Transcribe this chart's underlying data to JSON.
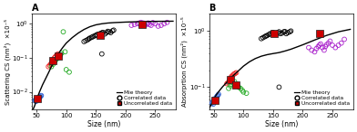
{
  "panel_A": {
    "title": "A",
    "ylabel": "Scattering CS (nm²)  ×10⁻⁵",
    "xlabel": "Size (nm)",
    "xlim": [
      42,
      285
    ],
    "ylim": [
      0.003,
      2.0
    ],
    "mie_x": [
      42,
      47,
      50,
      55,
      60,
      65,
      70,
      75,
      80,
      85,
      90,
      95,
      100,
      110,
      120,
      130,
      140,
      150,
      160,
      170,
      180,
      200,
      220,
      240,
      260,
      280
    ],
    "mie_y": [
      0.0025,
      0.004,
      0.006,
      0.01,
      0.016,
      0.024,
      0.036,
      0.055,
      0.08,
      0.115,
      0.16,
      0.21,
      0.27,
      0.39,
      0.53,
      0.68,
      0.82,
      0.93,
      1.0,
      1.05,
      1.08,
      1.12,
      1.15,
      1.17,
      1.18,
      1.19
    ],
    "blue_circles": {
      "x": [
        47,
        48,
        49,
        50,
        51,
        52,
        53,
        54,
        55,
        56,
        57,
        58
      ],
      "y": [
        0.0055,
        0.0058,
        0.0052,
        0.006,
        0.0065,
        0.0062,
        0.006,
        0.0068,
        0.007,
        0.0072,
        0.0075,
        0.0078
      ]
    },
    "red_circles": {
      "x": [
        70,
        72,
        74,
        75,
        76,
        77,
        78,
        80,
        82,
        84,
        86
      ],
      "y": [
        0.055,
        0.06,
        0.065,
        0.07,
        0.075,
        0.08,
        0.09,
        0.1,
        0.11,
        0.12,
        0.13
      ]
    },
    "green_circles": {
      "x": [
        75,
        78,
        80,
        82,
        85,
        88,
        90,
        92,
        95,
        98,
        100,
        105
      ],
      "y": [
        0.055,
        0.065,
        0.075,
        0.085,
        0.095,
        0.11,
        0.12,
        0.135,
        0.58,
        0.15,
        0.045,
        0.038
      ]
    },
    "black_circles": {
      "x": [
        130,
        133,
        136,
        138,
        140,
        143,
        145,
        148,
        150,
        152,
        155,
        158,
        160,
        162,
        165,
        168,
        170,
        172,
        175,
        178,
        180,
        160
      ],
      "y": [
        0.3,
        0.32,
        0.34,
        0.36,
        0.38,
        0.4,
        0.42,
        0.44,
        0.46,
        0.48,
        0.5,
        0.52,
        0.54,
        0.56,
        0.5,
        0.55,
        0.6,
        0.58,
        0.55,
        0.62,
        0.65,
        0.13
      ]
    },
    "purple_circles": {
      "x": [
        210,
        215,
        220,
        223,
        226,
        228,
        230,
        233,
        236,
        238,
        240,
        243,
        246,
        250,
        255,
        260,
        265,
        270
      ],
      "y": [
        0.9,
        0.95,
        1.0,
        1.05,
        1.1,
        0.95,
        1.05,
        0.9,
        1.0,
        1.05,
        0.95,
        0.9,
        1.08,
        1.0,
        0.85,
        0.9,
        1.0,
        1.1
      ]
    },
    "red_squares": {
      "x": [
        52,
        78,
        87,
        157,
        228
      ],
      "y": [
        0.0065,
        0.085,
        0.115,
        0.46,
        0.98
      ]
    }
  },
  "panel_B": {
    "title": "B",
    "ylabel": "Absorprtion CS (nm²)  ×10⁻⁵",
    "xlabel": "Size (nm)",
    "xlim": [
      42,
      285
    ],
    "ylim": [
      0.04,
      2.0
    ],
    "mie_x": [
      42,
      47,
      50,
      55,
      60,
      65,
      70,
      75,
      80,
      85,
      90,
      95,
      100,
      110,
      120,
      130,
      140,
      150,
      160,
      170,
      180,
      200,
      220,
      240,
      260,
      280
    ],
    "mie_y": [
      0.042,
      0.052,
      0.062,
      0.075,
      0.088,
      0.102,
      0.116,
      0.132,
      0.15,
      0.168,
      0.188,
      0.21,
      0.235,
      0.28,
      0.32,
      0.352,
      0.375,
      0.392,
      0.408,
      0.435,
      0.468,
      0.56,
      0.68,
      0.82,
      0.95,
      1.05
    ],
    "blue_circles": {
      "x": [
        47,
        48,
        49,
        50,
        51,
        52,
        53,
        54,
        55,
        56,
        57,
        58
      ],
      "y": [
        0.052,
        0.055,
        0.05,
        0.058,
        0.062,
        0.06,
        0.058,
        0.065,
        0.068,
        0.07,
        0.072,
        0.075
      ]
    },
    "red_circles": {
      "x": [
        72,
        74,
        76,
        77,
        78,
        79,
        80,
        82,
        84,
        86,
        88
      ],
      "y": [
        0.115,
        0.12,
        0.128,
        0.135,
        0.14,
        0.148,
        0.155,
        0.162,
        0.17,
        0.175,
        0.18
      ]
    },
    "green_circles": {
      "x": [
        75,
        78,
        80,
        82,
        85,
        88,
        90,
        92,
        95,
        98,
        100,
        105
      ],
      "y": [
        0.095,
        0.105,
        0.112,
        0.118,
        0.125,
        0.11,
        0.105,
        0.1,
        0.095,
        0.088,
        0.082,
        0.078
      ]
    },
    "black_circles": {
      "x": [
        130,
        133,
        136,
        138,
        140,
        143,
        145,
        148,
        150,
        152,
        155,
        158,
        160,
        162,
        165,
        168,
        170,
        172,
        175,
        178,
        180,
        160
      ],
      "y": [
        0.72,
        0.75,
        0.78,
        0.8,
        0.82,
        0.85,
        0.88,
        0.9,
        0.92,
        0.86,
        0.88,
        0.92,
        0.95,
        0.88,
        0.9,
        0.95,
        0.96,
        0.88,
        0.92,
        0.95,
        0.98,
        0.1
      ]
    },
    "purple_circles": {
      "x": [
        210,
        215,
        220,
        223,
        226,
        228,
        230,
        233,
        236,
        238,
        240,
        243,
        246,
        250,
        255,
        260,
        265,
        270
      ],
      "y": [
        0.5,
        0.45,
        0.42,
        0.48,
        0.52,
        0.55,
        0.58,
        0.5,
        0.45,
        0.52,
        0.56,
        0.6,
        0.65,
        0.55,
        0.5,
        0.55,
        0.6,
        0.7
      ]
    },
    "red_squares": {
      "x": [
        52,
        78,
        87,
        152,
        228
      ],
      "y": [
        0.058,
        0.135,
        0.11,
        0.88,
        0.88
      ]
    }
  },
  "legend_labels": [
    "Mie theory",
    "Correlated data",
    "Uncorrelated data"
  ],
  "colors": {
    "blue": "#3060D0",
    "red_circle": "#EE2222",
    "green": "#22AA22",
    "black": "#000000",
    "purple": "#AA22CC",
    "red_square": "#CC0000",
    "mie_line": "#000000"
  },
  "circle_size": 12,
  "square_size": 28,
  "fontsize_label": 5.5,
  "fontsize_tick": 5,
  "fontsize_title": 7,
  "fontsize_legend": 4.2
}
